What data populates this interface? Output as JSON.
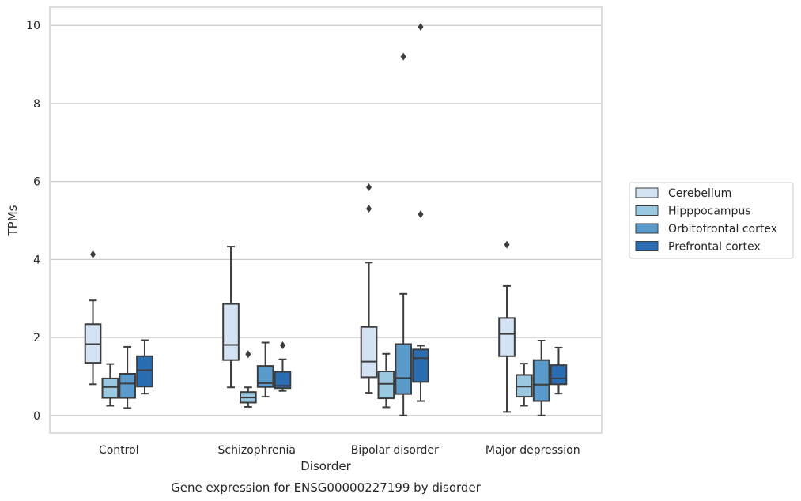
{
  "chart_data": {
    "type": "box",
    "title": "",
    "caption": "Gene expression for ENSG00000227199 by disorder",
    "xlabel": "Disorder",
    "ylabel": "TPMs",
    "ylim": [
      -0.45,
      10.47
    ],
    "yticks": [
      0,
      2,
      4,
      6,
      8,
      10
    ],
    "categories": [
      "Control",
      "Schizophrenia",
      "Bipolar disorder",
      "Major depression"
    ],
    "grid": "horizontal",
    "legend_position": "right",
    "series": [
      {
        "name": "Cerebellum",
        "color": "#d4e3f3",
        "boxes": [
          {
            "whislo": 0.8,
            "q1": 1.35,
            "med": 1.83,
            "q3": 2.34,
            "whishi": 2.95,
            "fliers": [
              4.13
            ]
          },
          {
            "whislo": 0.72,
            "q1": 1.42,
            "med": 1.81,
            "q3": 2.86,
            "whishi": 4.33,
            "fliers": []
          },
          {
            "whislo": 0.58,
            "q1": 0.98,
            "med": 1.38,
            "q3": 2.27,
            "whishi": 3.92,
            "fliers": [
              5.3,
              5.85
            ]
          },
          {
            "whislo": 0.09,
            "q1": 1.52,
            "med": 2.09,
            "q3": 2.5,
            "whishi": 3.32,
            "fliers": [
              4.38
            ]
          }
        ]
      },
      {
        "name": "Hipppocampus",
        "color": "#9ac8e0",
        "boxes": [
          {
            "whislo": 0.25,
            "q1": 0.45,
            "med": 0.73,
            "q3": 0.95,
            "whishi": 1.32,
            "fliers": []
          },
          {
            "whislo": 0.22,
            "q1": 0.33,
            "med": 0.46,
            "q3": 0.6,
            "whishi": 0.72,
            "fliers": [
              1.57
            ]
          },
          {
            "whislo": 0.21,
            "q1": 0.44,
            "med": 0.81,
            "q3": 1.13,
            "whishi": 1.58,
            "fliers": []
          },
          {
            "whislo": 0.25,
            "q1": 0.48,
            "med": 0.74,
            "q3": 1.04,
            "whishi": 1.33,
            "fliers": []
          }
        ]
      },
      {
        "name": "Orbitofrontal cortex",
        "color": "#5a9bcb",
        "boxes": [
          {
            "whislo": 0.19,
            "q1": 0.45,
            "med": 0.82,
            "q3": 1.07,
            "whishi": 1.76,
            "fliers": []
          },
          {
            "whislo": 0.48,
            "q1": 0.73,
            "med": 0.83,
            "q3": 1.27,
            "whishi": 1.87,
            "fliers": []
          },
          {
            "whislo": 0.0,
            "q1": 0.55,
            "med": 0.96,
            "q3": 1.83,
            "whishi": 3.12,
            "fliers": [
              9.2
            ]
          },
          {
            "whislo": 0.0,
            "q1": 0.37,
            "med": 0.79,
            "q3": 1.42,
            "whishi": 1.92,
            "fliers": []
          }
        ]
      },
      {
        "name": "Prefrontal cortex",
        "color": "#2a6db2",
        "boxes": [
          {
            "whislo": 0.56,
            "q1": 0.74,
            "med": 1.16,
            "q3": 1.52,
            "whishi": 1.93,
            "fliers": []
          },
          {
            "whislo": 0.63,
            "q1": 0.7,
            "med": 0.76,
            "q3": 1.12,
            "whishi": 1.44,
            "fliers": [
              1.8
            ]
          },
          {
            "whislo": 0.37,
            "q1": 0.86,
            "med": 1.47,
            "q3": 1.69,
            "whishi": 1.79,
            "fliers": [
              5.16,
              9.96
            ]
          },
          {
            "whislo": 0.56,
            "q1": 0.8,
            "med": 0.95,
            "q3": 1.29,
            "whishi": 1.74,
            "fliers": []
          }
        ]
      }
    ]
  }
}
